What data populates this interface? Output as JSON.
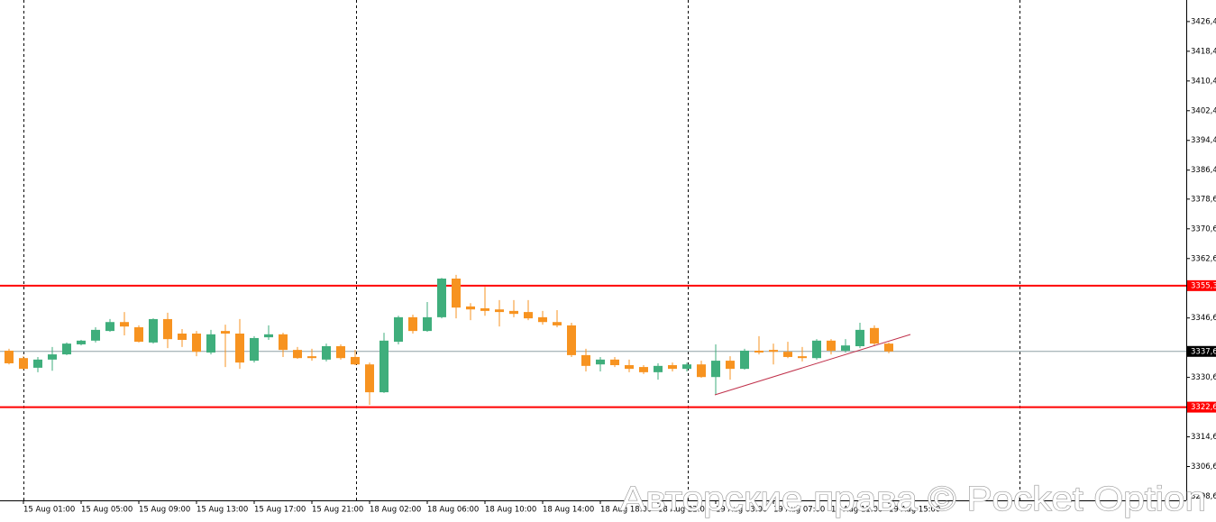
{
  "chart_data": {
    "type": "candlestick",
    "watermark": "Авторские права © Pocket Option",
    "up_color": "#3fae7c",
    "down_color": "#f79320",
    "categories": [
      null,
      "15 Aug 01:00",
      null,
      null,
      null,
      "15 Aug 05:00",
      null,
      null,
      null,
      "15 Aug 09:00",
      null,
      null,
      null,
      "15 Aug 13:00",
      null,
      null,
      null,
      "15 Aug 17:00",
      null,
      null,
      null,
      "15 Aug 21:00",
      null,
      null,
      null,
      "18 Aug 02:00",
      null,
      null,
      null,
      "18 Aug 06:00",
      null,
      null,
      null,
      "18 Aug 10:00",
      null,
      null,
      null,
      "18 Aug 14:00",
      null,
      null,
      null,
      "18 Aug 18:00",
      null,
      null,
      null,
      "18 Aug 22:00",
      null,
      null,
      null,
      "19 Aug 03:00",
      null,
      null,
      null,
      "19 Aug 07:00",
      null,
      null,
      null,
      "19 Aug 11:00",
      null,
      null,
      null,
      "19 Aug 15:00"
    ],
    "open": [
      3337.8,
      3335.8,
      3333.2,
      3335.4,
      3336.8,
      3339.5,
      3340.5,
      3343.1,
      3345.5,
      3344.1,
      3340.0,
      3346.3,
      3342.4,
      3342.4,
      3337.3,
      3343.1,
      3342.4,
      3335.1,
      3341.4,
      3342.2,
      3338.0,
      3336.3,
      3335.4,
      3339.0,
      3336.1,
      3334.1,
      3326.6,
      3340.2,
      3346.8,
      3343.1,
      3346.8,
      3357.2,
      3349.7,
      3349.2,
      3348.9,
      3348.5,
      3348.2,
      3346.8,
      3345.5,
      3344.6,
      3336.6,
      3334.1,
      3335.4,
      3333.9,
      3333.4,
      3332.0,
      3333.9,
      3332.9,
      3334.1,
      3330.7,
      3335.1,
      3332.9,
      3337.8,
      3338.0,
      3337.5,
      3336.3,
      3335.8,
      3340.5,
      3337.8,
      3339.0,
      3343.9,
      3339.7
    ],
    "high": [
      3338.3,
      3336.3,
      3336.1,
      3338.8,
      3340.0,
      3340.7,
      3344.1,
      3346.3,
      3348.2,
      3344.6,
      3346.5,
      3348.0,
      3343.6,
      3343.1,
      3343.4,
      3344.8,
      3346.3,
      3341.7,
      3344.6,
      3342.6,
      3338.8,
      3338.3,
      3339.7,
      3339.5,
      3338.0,
      3334.6,
      3342.6,
      3347.2,
      3347.5,
      3350.9,
      3357.4,
      3358.2,
      3350.6,
      3355.0,
      3351.4,
      3351.4,
      3351.4,
      3348.5,
      3348.7,
      3345.3,
      3338.3,
      3336.1,
      3336.1,
      3335.4,
      3333.9,
      3334.4,
      3334.6,
      3334.6,
      3335.1,
      3339.5,
      3336.3,
      3338.3,
      3341.7,
      3339.7,
      3340.2,
      3338.8,
      3340.9,
      3340.9,
      3340.9,
      3345.3,
      3344.6,
      3340.0
    ],
    "low": [
      3334.1,
      3332.7,
      3332.0,
      3332.4,
      3336.6,
      3339.2,
      3340.0,
      3342.9,
      3341.9,
      3340.0,
      3339.7,
      3338.5,
      3338.8,
      3336.3,
      3336.8,
      3333.4,
      3332.9,
      3334.6,
      3340.7,
      3336.1,
      3335.6,
      3335.1,
      3334.9,
      3335.4,
      3333.9,
      3323.2,
      3326.4,
      3339.5,
      3342.4,
      3342.9,
      3346.5,
      3346.5,
      3346.0,
      3347.2,
      3344.3,
      3346.8,
      3346.0,
      3344.8,
      3344.1,
      3336.1,
      3332.2,
      3332.2,
      3333.4,
      3332.0,
      3331.5,
      3330.0,
      3332.2,
      3332.2,
      3330.5,
      3325.9,
      3330.0,
      3332.7,
      3336.8,
      3334.1,
      3335.8,
      3334.9,
      3335.4,
      3336.8,
      3337.3,
      3338.5,
      3339.0,
      3337.1
    ],
    "close": [
      3334.4,
      3332.9,
      3335.4,
      3336.8,
      3339.7,
      3340.5,
      3343.4,
      3345.5,
      3344.3,
      3340.2,
      3346.3,
      3340.9,
      3340.7,
      3337.5,
      3342.2,
      3342.4,
      3334.6,
      3341.2,
      3342.2,
      3338.0,
      3335.8,
      3335.8,
      3339.0,
      3335.8,
      3334.1,
      3326.6,
      3340.5,
      3346.8,
      3343.1,
      3346.8,
      3357.2,
      3349.4,
      3348.9,
      3348.5,
      3348.2,
      3347.7,
      3346.5,
      3345.5,
      3344.6,
      3336.6,
      3333.7,
      3335.4,
      3333.9,
      3332.9,
      3332.0,
      3333.7,
      3332.9,
      3334.1,
      3330.7,
      3335.1,
      3332.9,
      3337.8,
      3337.3,
      3337.5,
      3336.1,
      3335.8,
      3340.5,
      3337.8,
      3339.2,
      3343.4,
      3339.7,
      3337.6
    ],
    "ylim": [
      3297.5,
      3432.2
    ],
    "yticks": [
      {
        "value": 3426.4,
        "label": "3426,4"
      },
      {
        "value": 3418.4,
        "label": "3418,4"
      },
      {
        "value": 3410.4,
        "label": "3410,4"
      },
      {
        "value": 3402.4,
        "label": "3402,4"
      },
      {
        "value": 3394.4,
        "label": "3394,4"
      },
      {
        "value": 3386.4,
        "label": "3386,4"
      },
      {
        "value": 3378.6,
        "label": "3378,6"
      },
      {
        "value": 3370.6,
        "label": "3370,6"
      },
      {
        "value": 3362.6,
        "label": "3362,6"
      },
      {
        "value": 3346.6,
        "label": "3346,6"
      },
      {
        "value": 3330.6,
        "label": "3330,6"
      },
      {
        "value": 3314.6,
        "label": "3314,6"
      },
      {
        "value": 3306.6,
        "label": "3306,6"
      },
      {
        "value": 3298.6,
        "label": "3298,6"
      }
    ],
    "levels": [
      {
        "value": 3355.3,
        "label": "3355,3",
        "color": "#ff0000"
      },
      {
        "value": 3322.6,
        "label": "3322,6",
        "color": "#ff0000"
      }
    ],
    "current_price": {
      "value": 3337.6,
      "label": "3337,6",
      "color": "#000000"
    }
  }
}
